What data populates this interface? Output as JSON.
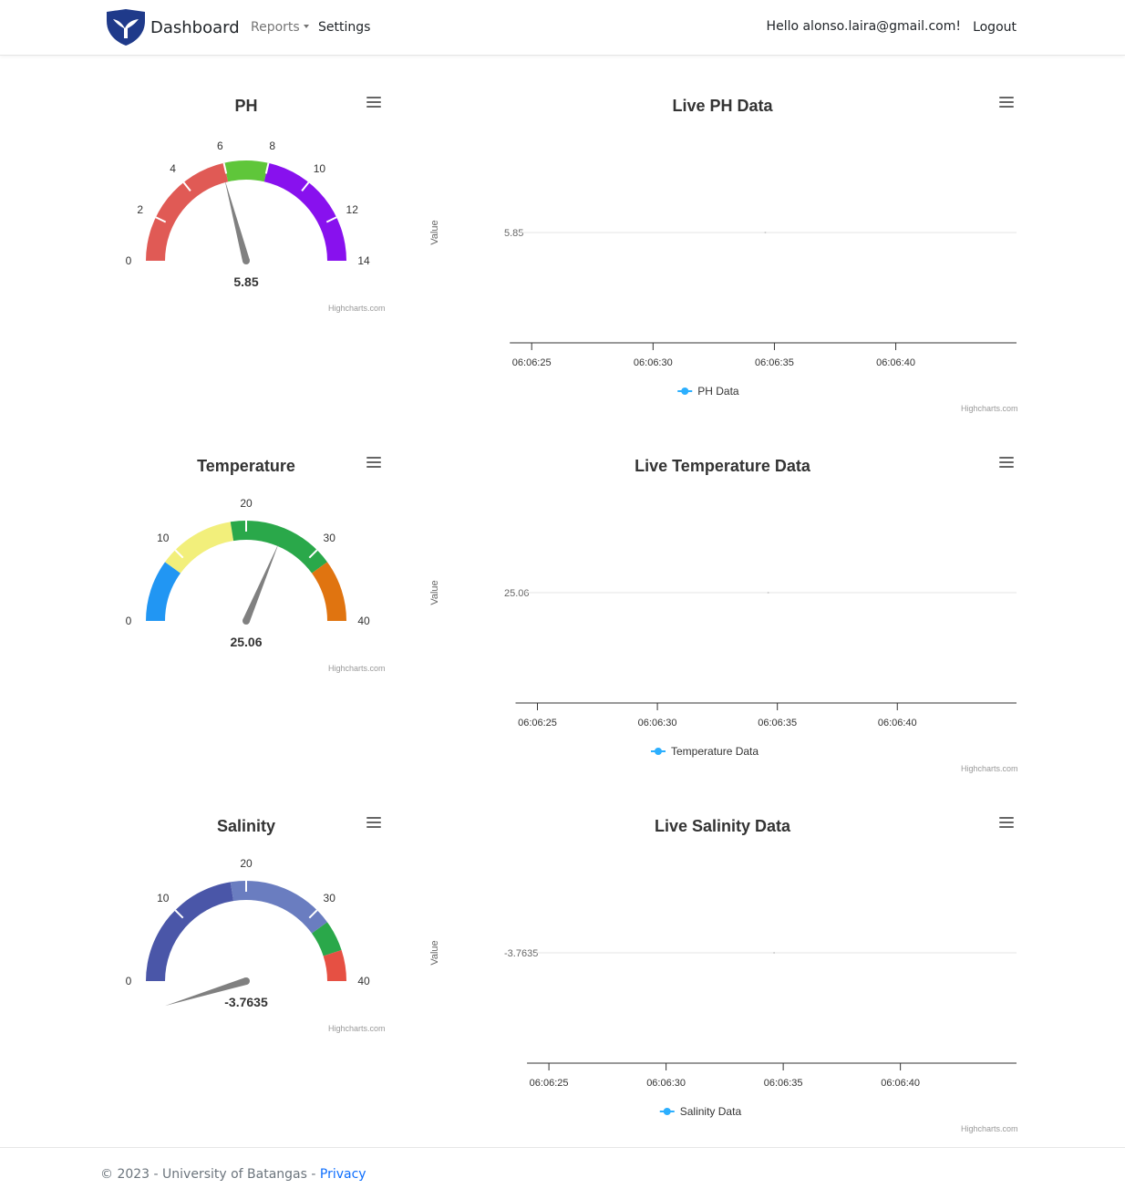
{
  "navbar": {
    "brand": "Dashboard",
    "links": {
      "reports": "Reports",
      "settings": "Settings"
    },
    "greeting": "Hello alonso.laira@gmail.com!",
    "logout": "Logout"
  },
  "footer": {
    "copyright": "© 2023 - University of Batangas -",
    "privacy": "Privacy"
  },
  "credits": "Highcharts.com",
  "colors": {
    "series": "#2caffe",
    "needle": "#808080"
  },
  "chart_data": [
    {
      "type": "gauge",
      "title": "PH",
      "min": 0,
      "max": 14,
      "ticks": [
        "0",
        "2",
        "4",
        "6",
        "8",
        "10",
        "12",
        "14"
      ],
      "value": 5.85,
      "value_label": "5.85",
      "bands": [
        {
          "from": 0,
          "to": 6,
          "color": "#e05a55"
        },
        {
          "from": 6,
          "to": 8,
          "color": "#5fc63a"
        },
        {
          "from": 8,
          "to": 14,
          "color": "#8811ee"
        }
      ]
    },
    {
      "type": "line",
      "title": "Live PH Data",
      "ylabel": "Value",
      "y_ticks": [
        "5.85"
      ],
      "x_ticks": [
        "06:06:25",
        "06:06:30",
        "06:06:35",
        "06:06:40"
      ],
      "series": [
        {
          "name": "PH Data",
          "x": [
            "06:06:35"
          ],
          "y": [
            5.85
          ]
        }
      ]
    },
    {
      "type": "gauge",
      "title": "Temperature",
      "min": 0,
      "max": 40,
      "ticks": [
        "0",
        "10",
        "20",
        "30",
        "40"
      ],
      "value": 25.06,
      "value_label": "25.06",
      "bands": [
        {
          "from": 0,
          "to": 8,
          "color": "#2196f3"
        },
        {
          "from": 8,
          "to": 18,
          "color": "#f2ef7b"
        },
        {
          "from": 18,
          "to": 32,
          "color": "#2aa84a"
        },
        {
          "from": 32,
          "to": 40,
          "color": "#e07410"
        }
      ]
    },
    {
      "type": "line",
      "title": "Live Temperature Data",
      "ylabel": "Value",
      "y_ticks": [
        "25.06"
      ],
      "x_ticks": [
        "06:06:25",
        "06:06:30",
        "06:06:35",
        "06:06:40"
      ],
      "series": [
        {
          "name": "Temperature Data",
          "x": [
            "06:06:35"
          ],
          "y": [
            25.06
          ]
        }
      ]
    },
    {
      "type": "gauge",
      "title": "Salinity",
      "min": 0,
      "max": 40,
      "ticks": [
        "0",
        "10",
        "20",
        "30",
        "40"
      ],
      "value": -3.7635,
      "value_label": "-3.7635",
      "bands": [
        {
          "from": 0,
          "to": 18,
          "color": "#4a56a8"
        },
        {
          "from": 18,
          "to": 32,
          "color": "#6a7dc0"
        },
        {
          "from": 32,
          "to": 36,
          "color": "#2aa84a"
        },
        {
          "from": 36,
          "to": 40,
          "color": "#e65043"
        }
      ]
    },
    {
      "type": "line",
      "title": "Live Salinity Data",
      "ylabel": "Value",
      "y_ticks": [
        "-3.7635"
      ],
      "x_ticks": [
        "06:06:25",
        "06:06:30",
        "06:06:35",
        "06:06:40"
      ],
      "series": [
        {
          "name": "Salinity Data",
          "x": [
            "06:06:35"
          ],
          "y": [
            -3.7635
          ]
        }
      ]
    }
  ]
}
